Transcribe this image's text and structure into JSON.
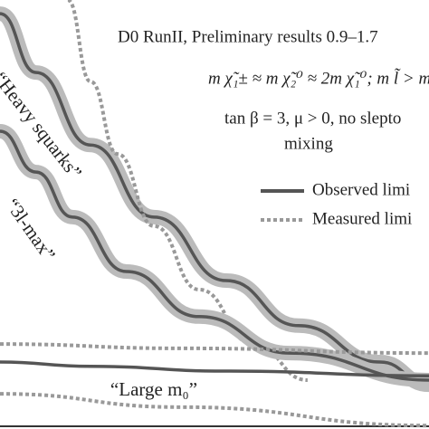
{
  "chart_data": {
    "type": "line",
    "title": "D0 RunII, Preliminary results 0.9–1.7",
    "annotations": [
      "m χ̃₁± ≈ m χ̃₂⁰ ≈ 2m χ̃₁⁰; m l̃ > m",
      "tan β = 3, μ > 0, no slepto",
      "mixing"
    ],
    "legend": [
      {
        "label": "Observed limi",
        "style": "solid"
      },
      {
        "label": "Measured limi",
        "style": "dotted"
      }
    ],
    "xlim": [
      0,
      100
    ],
    "ylim": [
      0,
      100
    ],
    "series": [
      {
        "name": "“Heavy squarks”",
        "style": "solid",
        "color": "#555555",
        "band_color": "#bbbbbb",
        "x": [
          0,
          8.4,
          21.1,
          35.9,
          52.7,
          69.6,
          88.6,
          100
        ],
        "values": [
          96.8,
          83.1,
          66.2,
          49.4,
          34.6,
          24.1,
          15.6,
          10.3
        ]
      },
      {
        "style": "dotted",
        "color": "#999999",
        "x": [
          15.8,
          21.1,
          27.4,
          35.9,
          46.4,
          59.1,
          71.7
        ],
        "values": [
          100,
          81,
          64.1,
          47.3,
          32.5,
          19.8,
          11.4
        ]
      },
      {
        "name": "“3l-max”",
        "style": "solid",
        "color": "#555555",
        "band_color": "#bbbbbb",
        "x": [
          0,
          8.4,
          16.9,
          29.5,
          46.4,
          67.5,
          100
        ],
        "values": [
          69.4,
          59.9,
          49.4,
          36.7,
          26.2,
          17.7,
          11.4
        ]
      },
      {
        "name": "“Large m₀”",
        "style": "solid",
        "color": "#555555",
        "x": [
          0,
          21.1,
          52.7,
          100
        ],
        "values": [
          15.6,
          14.6,
          13.5,
          12.4
        ]
      },
      {
        "style": "dotted",
        "color": "#999999",
        "x": [
          0,
          42.2,
          100
        ],
        "values": [
          19.8,
          18.8,
          17.7
        ]
      },
      {
        "style": "dotted",
        "color": "#999999",
        "x": [
          0,
          42.2,
          100
        ],
        "values": [
          8.2,
          5.1,
          0.8
        ]
      }
    ]
  }
}
